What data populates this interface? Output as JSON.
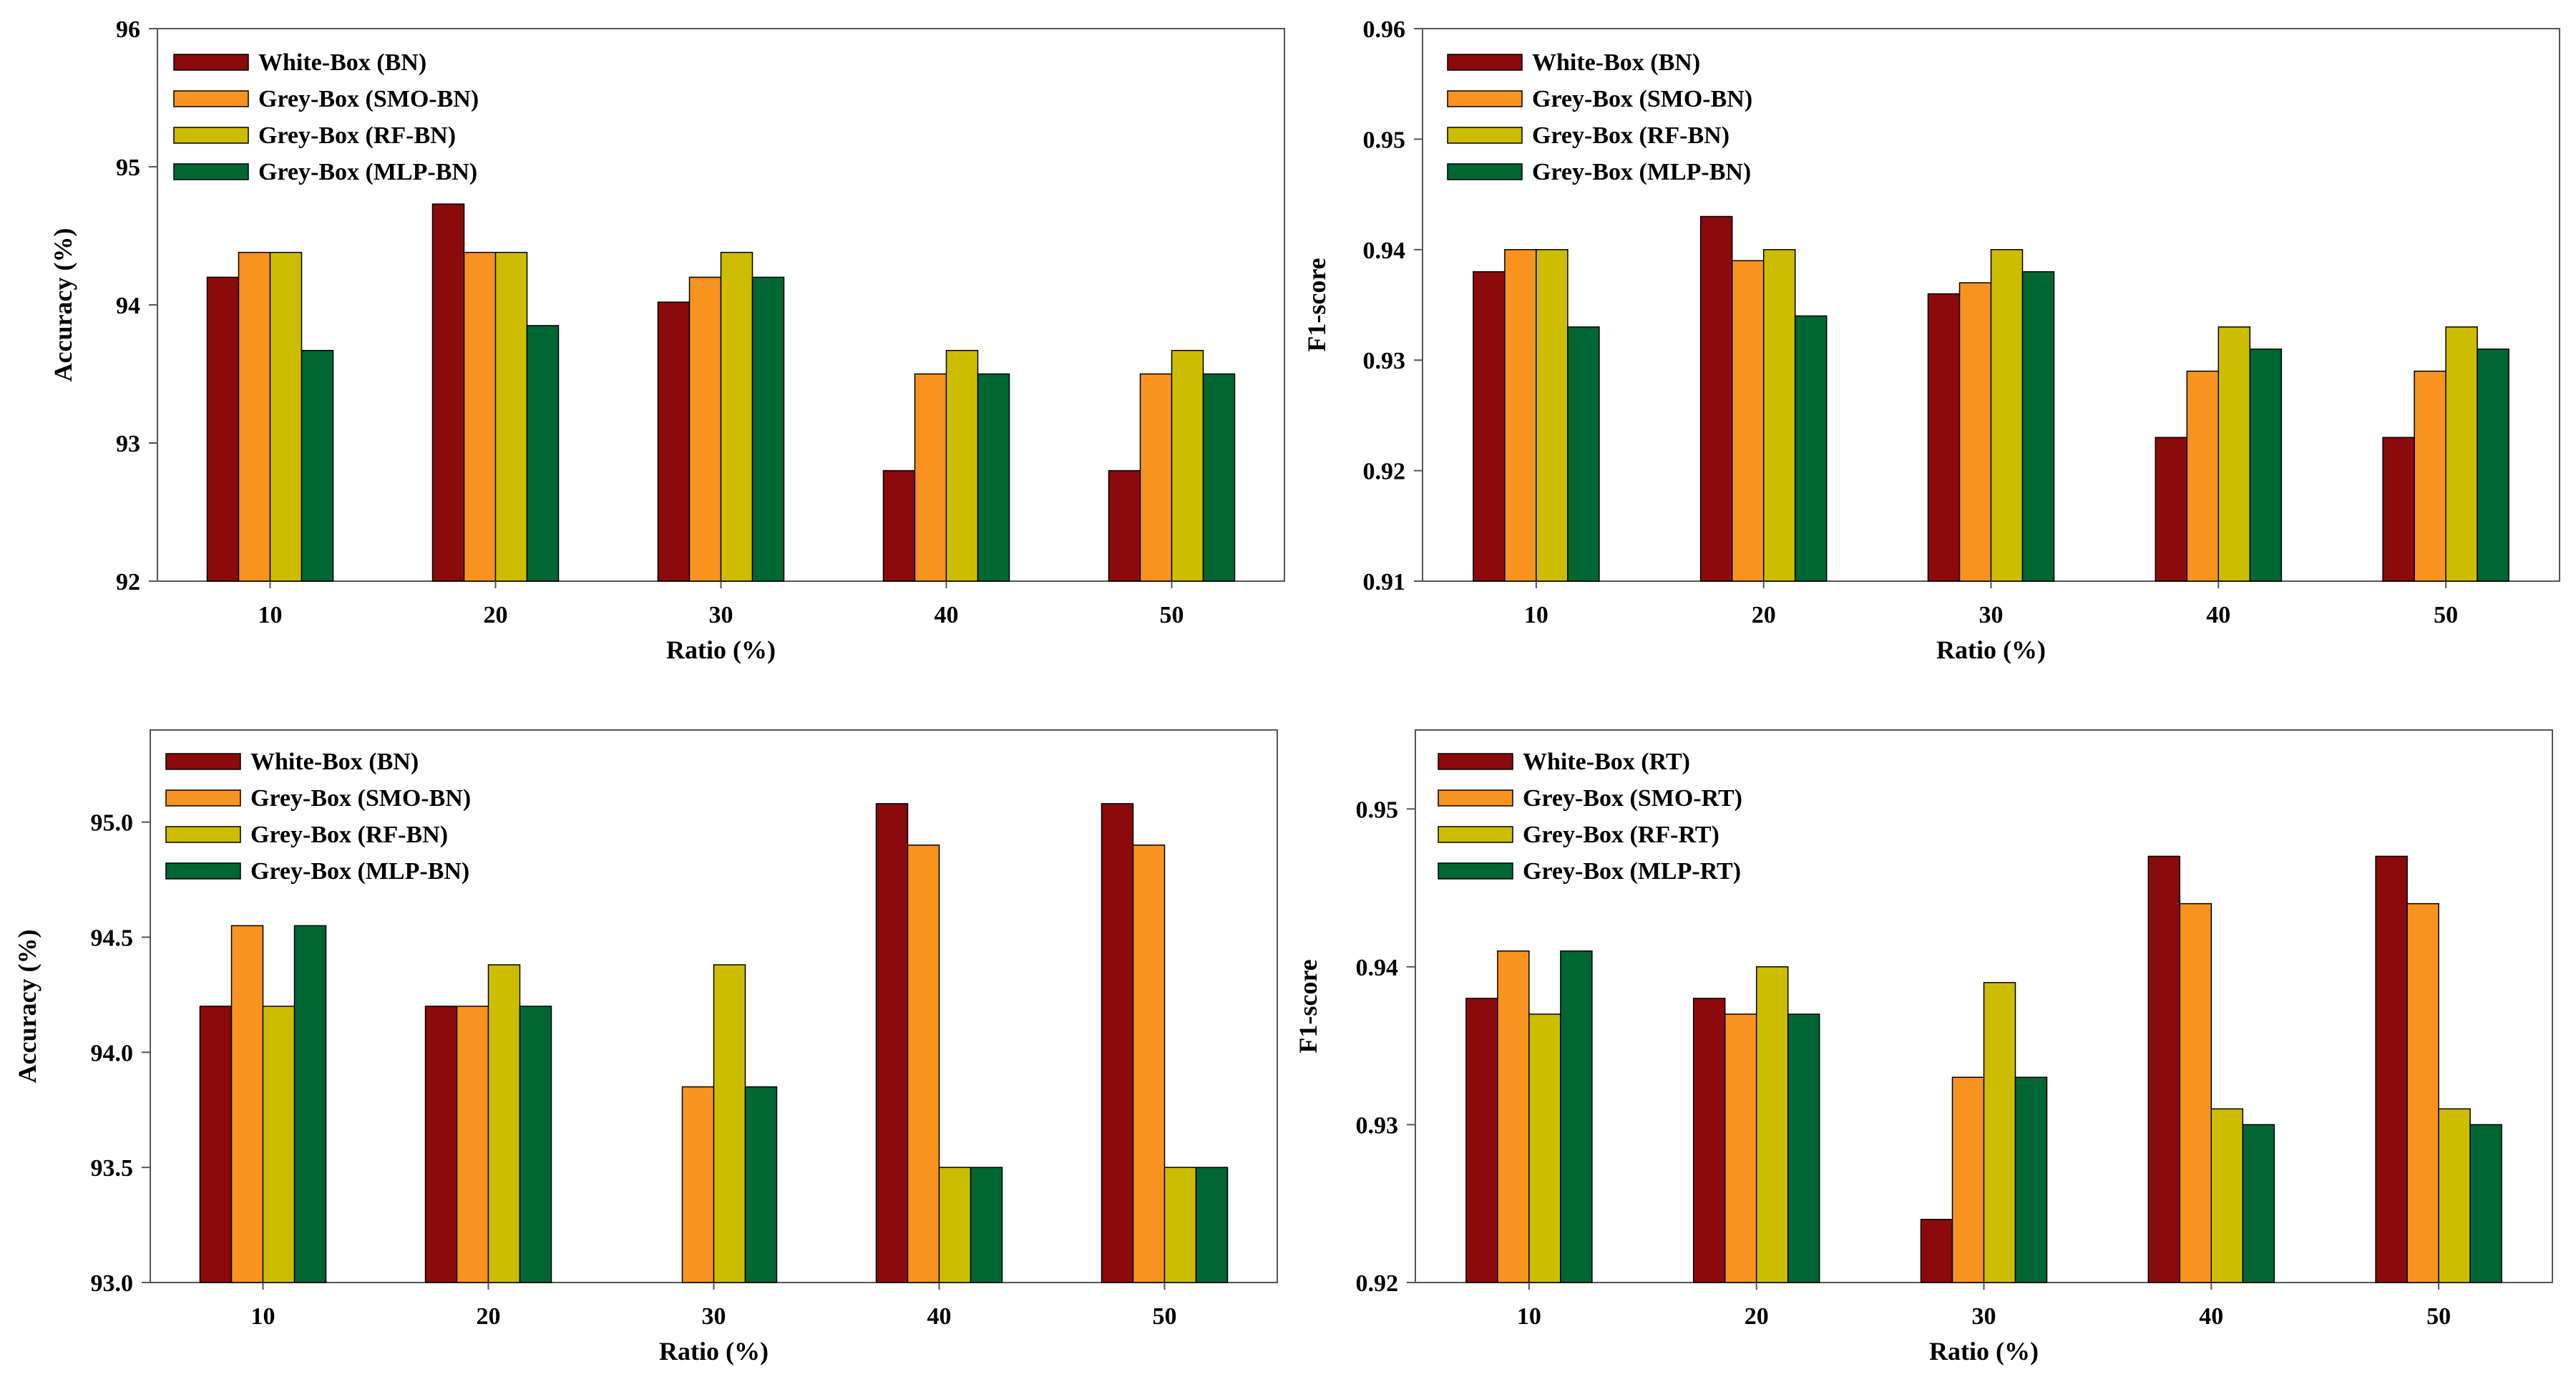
{
  "colors": {
    "white_box": "#8b0a0c",
    "grey_smo": "#f7931e",
    "grey_rf": "#cdbd00",
    "grey_mlp": "#006633"
  },
  "chart_data": [
    {
      "type": "bar",
      "xlabel": "Ratio (%)",
      "ylabel": "Accuracy (%)",
      "ylim": [
        92,
        96
      ],
      "yticks": [
        "92",
        "93",
        "94",
        "95",
        "96"
      ],
      "ytick_values": [
        92,
        93,
        94,
        95,
        96
      ],
      "categories": [
        "10",
        "20",
        "30",
        "40",
        "50"
      ],
      "legend_position": "top-left",
      "series": [
        {
          "name": "White-Box (BN)",
          "color_key": "white_box",
          "values": [
            94.2,
            94.73,
            94.02,
            92.8,
            92.8
          ]
        },
        {
          "name": "Grey-Box (SMO-BN)",
          "color_key": "grey_smo",
          "values": [
            94.38,
            94.38,
            94.2,
            93.5,
            93.5
          ]
        },
        {
          "name": "Grey-Box (RF-BN)",
          "color_key": "grey_rf",
          "values": [
            94.38,
            94.38,
            94.38,
            93.67,
            93.67
          ]
        },
        {
          "name": "Grey-Box (MLP-BN)",
          "color_key": "grey_mlp",
          "values": [
            93.67,
            93.85,
            94.2,
            93.5,
            93.5
          ]
        }
      ]
    },
    {
      "type": "bar",
      "xlabel": "Ratio (%)",
      "ylabel": "F1-score",
      "ylim": [
        0.91,
        0.96
      ],
      "yticks": [
        "0.91",
        "0.92",
        "0.93",
        "0.94",
        "0.95",
        "0.96"
      ],
      "ytick_values": [
        0.91,
        0.92,
        0.93,
        0.94,
        0.95,
        0.96
      ],
      "categories": [
        "10",
        "20",
        "30",
        "40",
        "50"
      ],
      "legend_position": "top-left",
      "series": [
        {
          "name": "White-Box (BN)",
          "color_key": "white_box",
          "values": [
            0.938,
            0.943,
            0.936,
            0.923,
            0.923
          ]
        },
        {
          "name": "Grey-Box (SMO-BN)",
          "color_key": "grey_smo",
          "values": [
            0.94,
            0.939,
            0.937,
            0.929,
            0.929
          ]
        },
        {
          "name": "Grey-Box (RF-BN)",
          "color_key": "grey_rf",
          "values": [
            0.94,
            0.94,
            0.94,
            0.933,
            0.933
          ]
        },
        {
          "name": "Grey-Box (MLP-BN)",
          "color_key": "grey_mlp",
          "values": [
            0.933,
            0.934,
            0.938,
            0.931,
            0.931
          ]
        }
      ]
    },
    {
      "type": "bar",
      "xlabel": "Ratio (%)",
      "ylabel": "Accuracy (%)",
      "ylim": [
        93.0,
        95.4
      ],
      "yticks": [
        "93.0",
        "93.5",
        "94.0",
        "94.5",
        "95.0"
      ],
      "ytick_values": [
        93.0,
        93.5,
        94.0,
        94.5,
        95.0
      ],
      "categories": [
        "10",
        "20",
        "30",
        "40",
        "50"
      ],
      "legend_position": "top-left",
      "series": [
        {
          "name": "White-Box (BN)",
          "color_key": "white_box",
          "values": [
            94.2,
            94.2,
            93.0,
            95.08,
            95.08
          ]
        },
        {
          "name": "Grey-Box (SMO-BN)",
          "color_key": "grey_smo",
          "values": [
            94.55,
            94.2,
            93.85,
            94.9,
            94.9
          ]
        },
        {
          "name": "Grey-Box (RF-BN)",
          "color_key": "grey_rf",
          "values": [
            94.2,
            94.38,
            94.38,
            93.5,
            93.5
          ]
        },
        {
          "name": "Grey-Box (MLP-BN)",
          "color_key": "grey_mlp",
          "values": [
            94.55,
            94.2,
            93.85,
            93.5,
            93.5
          ]
        }
      ]
    },
    {
      "type": "bar",
      "xlabel": "Ratio (%)",
      "ylabel": "F1-score",
      "ylim": [
        0.92,
        0.955
      ],
      "yticks": [
        "0.92",
        "0.93",
        "0.94",
        "0.95"
      ],
      "ytick_values": [
        0.92,
        0.93,
        0.94,
        0.95
      ],
      "categories": [
        "10",
        "20",
        "30",
        "40",
        "50"
      ],
      "legend_position": "top-left",
      "series": [
        {
          "name": "White-Box (RT)",
          "color_key": "white_box",
          "values": [
            0.938,
            0.938,
            0.924,
            0.947,
            0.947
          ]
        },
        {
          "name": "Grey-Box (SMO-RT)",
          "color_key": "grey_smo",
          "values": [
            0.941,
            0.937,
            0.933,
            0.944,
            0.944
          ]
        },
        {
          "name": "Grey-Box (RF-RT)",
          "color_key": "grey_rf",
          "values": [
            0.937,
            0.94,
            0.939,
            0.931,
            0.931
          ]
        },
        {
          "name": "Grey-Box (MLP-RT)",
          "color_key": "grey_mlp",
          "values": [
            0.941,
            0.937,
            0.933,
            0.93,
            0.93
          ]
        }
      ]
    }
  ]
}
